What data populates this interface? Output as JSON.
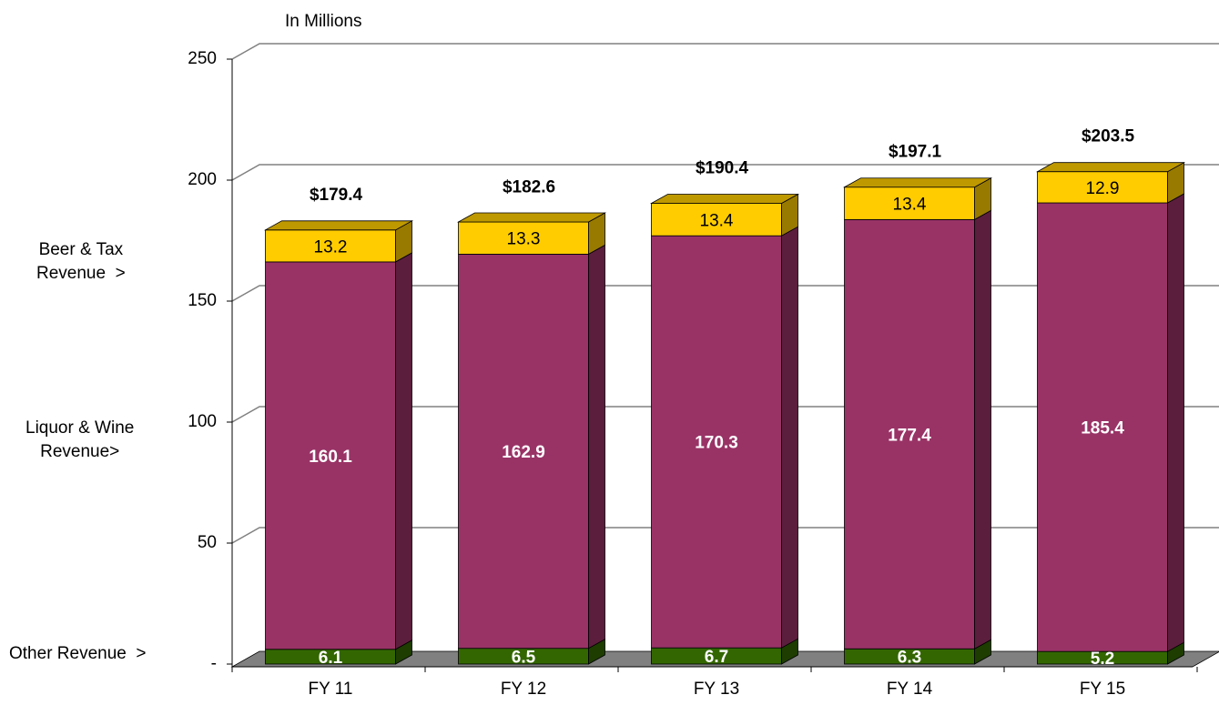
{
  "chart_data": {
    "type": "bar",
    "stacked": true,
    "three_d": true,
    "annotation": "In Millions",
    "side_labels": [
      "Beer & Tax\nRevenue  >",
      "Liquor & Wine\nRevenue>",
      "Other Revenue  >"
    ],
    "categories": [
      "FY 11",
      "FY 12",
      "FY 13",
      "FY 14",
      "FY 15"
    ],
    "series": [
      {
        "name": "Other Revenue",
        "color": "#336600",
        "label_color": "#ffffff",
        "values": [
          6.1,
          6.5,
          6.7,
          6.3,
          5.2
        ]
      },
      {
        "name": "Liquor & Wine Revenue",
        "color": "#993366",
        "label_color": "#ffffff",
        "values": [
          160.1,
          162.9,
          170.3,
          177.4,
          185.4
        ]
      },
      {
        "name": "Beer & Tax Revenue",
        "color": "#ffcc00",
        "label_color": "#000000",
        "values": [
          13.2,
          13.3,
          13.4,
          13.4,
          12.9
        ]
      }
    ],
    "totals": {
      "values": [
        179.4,
        182.6,
        190.4,
        197.1,
        203.5
      ],
      "value_labels": [
        "$179.4",
        "$182.6",
        "$190.4",
        "$197.1",
        "$203.5"
      ]
    },
    "ylim": [
      0,
      250
    ],
    "yticks": [
      {
        "value": 0,
        "label": "-"
      },
      50,
      100,
      150,
      200,
      250
    ],
    "grid": true
  }
}
